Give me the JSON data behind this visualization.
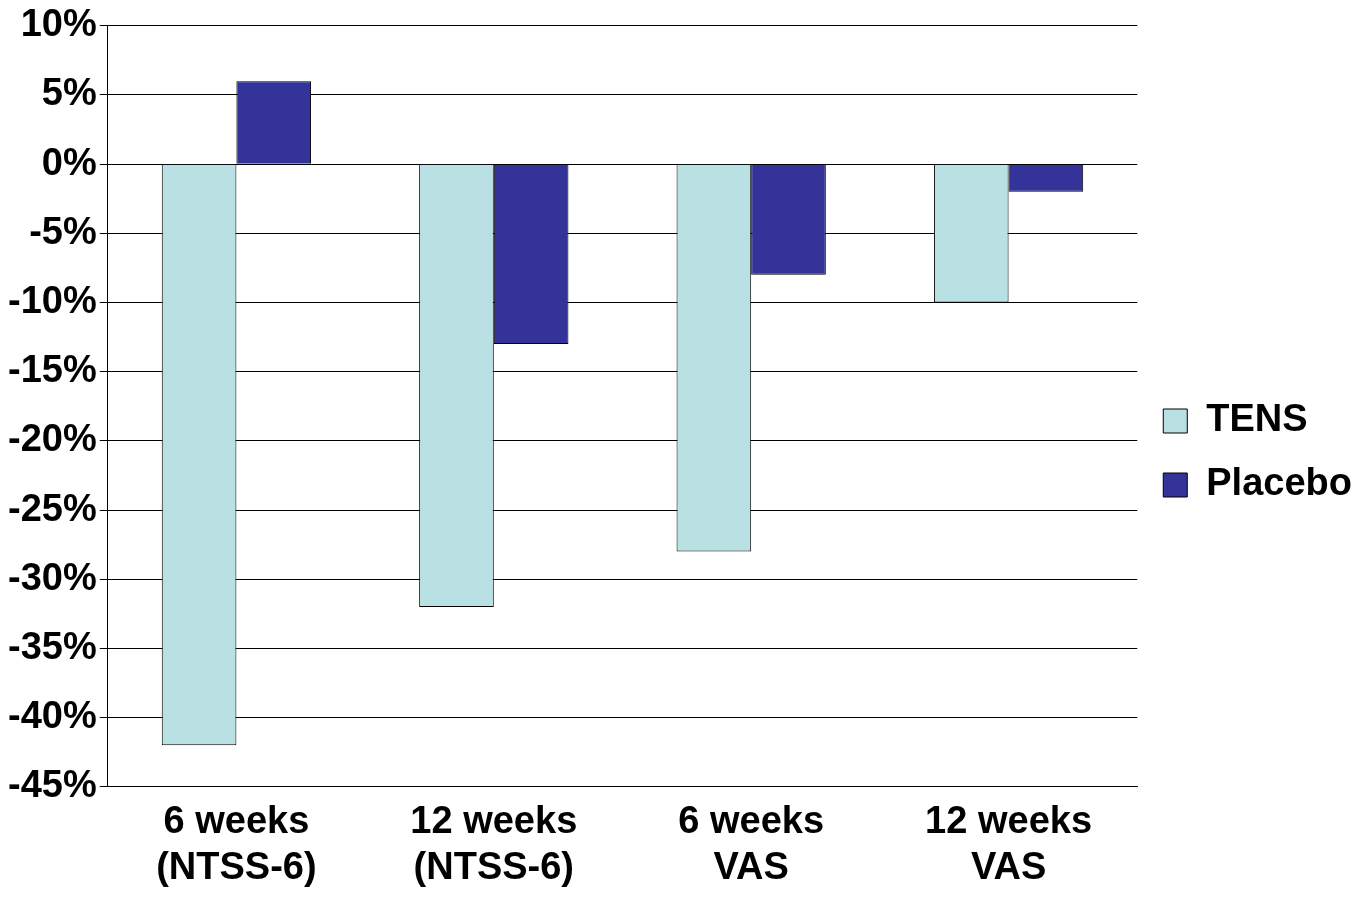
{
  "chart_data": {
    "type": "bar",
    "categories": [
      "6 weeks\n(NTSS-6)",
      "12 weeks\n(NTSS-6)",
      "6 weeks\nVAS",
      "12 weeks\nVAS"
    ],
    "series": [
      {
        "name": "TENS",
        "color": "#b9e0e3",
        "values": [
          -42,
          -32,
          -28,
          -10
        ]
      },
      {
        "name": "Placebo",
        "color": "#333399",
        "values": [
          6,
          -13,
          -8,
          -2
        ]
      }
    ],
    "ylim": [
      -45,
      10
    ],
    "yticks": [
      {
        "value": -45,
        "label": "-45%"
      },
      {
        "value": -40,
        "label": "-40%"
      },
      {
        "value": -35,
        "label": "-35%"
      },
      {
        "value": -30,
        "label": "-30%"
      },
      {
        "value": -25,
        "label": "-25%"
      },
      {
        "value": -20,
        "label": "-20%"
      },
      {
        "value": -15,
        "label": "-15%"
      },
      {
        "value": -10,
        "label": "-10%"
      },
      {
        "value": -5,
        "label": "-5%"
      },
      {
        "value": 0,
        "label": "0%"
      },
      {
        "value": 5,
        "label": "5%"
      },
      {
        "value": 10,
        "label": "10%"
      }
    ],
    "grid": "y",
    "legend": "right"
  }
}
